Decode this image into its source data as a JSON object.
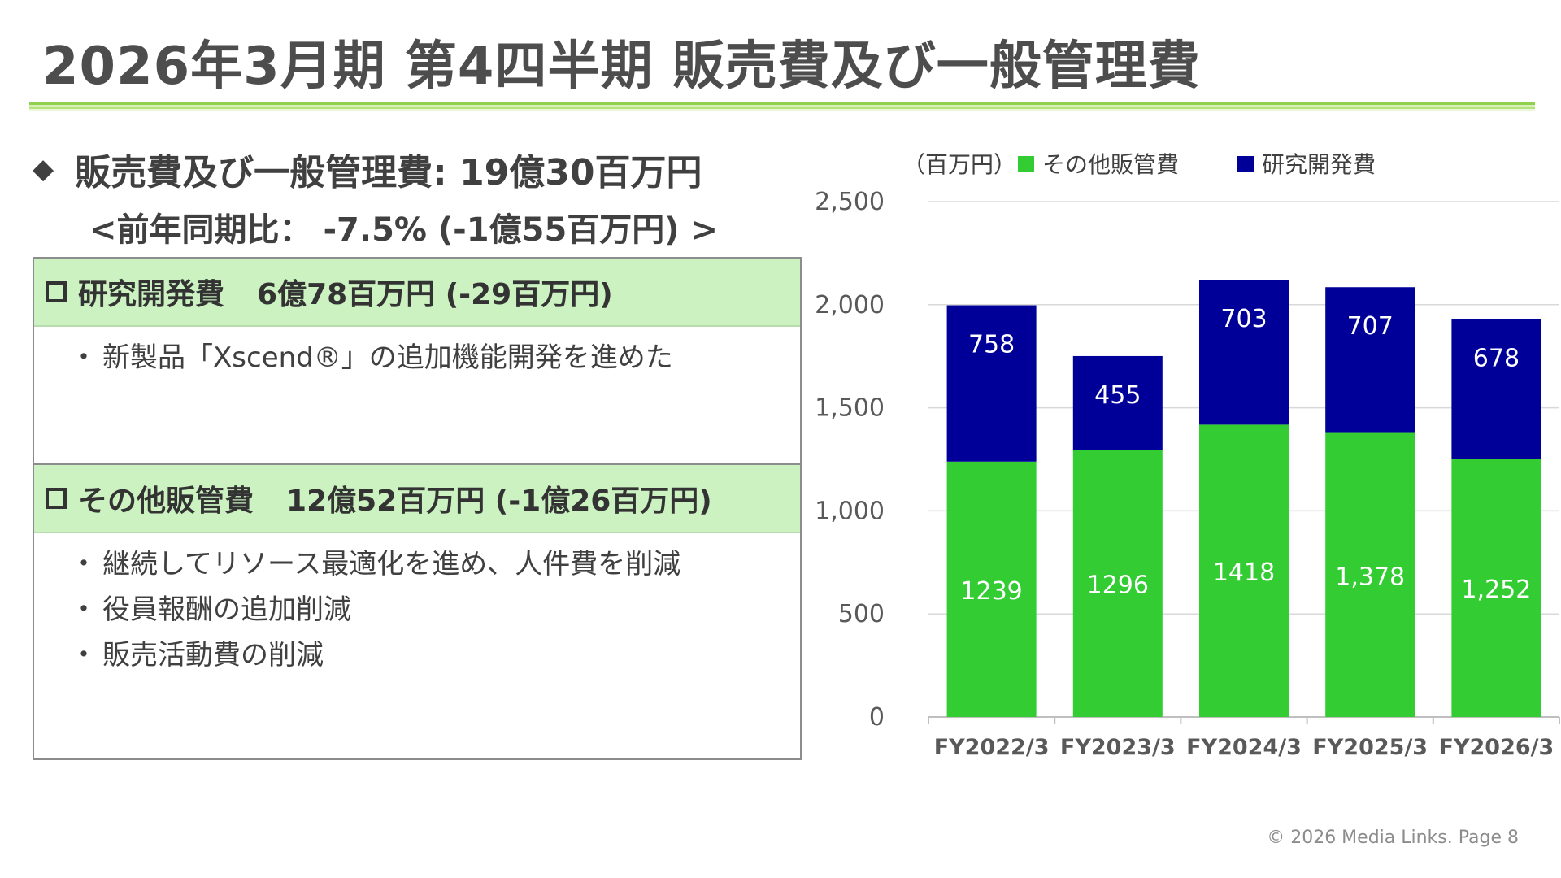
{
  "title": "2026年3月期 第4四半期 販売費及び一般管理費",
  "headline": {
    "icon": "diamond-icon",
    "line1": "販売費及び一般管理費: 19億30百万円",
    "line2": "<前年同期比： -7.5% (-1億55百万円) >"
  },
  "sections": [
    {
      "label": "研究開発費",
      "amount": "6億78百万円 (-29百万円)",
      "bullets": [
        "新製品「Xscend®」の追加機能開発を進めた"
      ]
    },
    {
      "label": "その他販管費",
      "amount": "12億52百万円 (-1億26百万円)",
      "bullets": [
        "継続してリソース最適化を進め、人件費を削減",
        "役員報酬の追加削減",
        "販売活動費の削減"
      ]
    }
  ],
  "bullet_mark": "・",
  "chart_data": {
    "type": "bar",
    "stacked": true,
    "unit_label": "（百万円）",
    "categories": [
      "FY2022/3",
      "FY2023/3",
      "FY2024/3",
      "FY2025/3",
      "FY2026/3"
    ],
    "series": [
      {
        "name": "その他販管費",
        "color": "#33cc33",
        "values": [
          1239,
          1296,
          1418,
          1378,
          1252
        ],
        "labels": [
          "1239",
          "1296",
          "1418",
          "1,378",
          "1,252"
        ]
      },
      {
        "name": "研究開発費",
        "color": "#000099",
        "values": [
          758,
          455,
          703,
          707,
          678
        ],
        "labels": [
          "758",
          "455",
          "703",
          "707",
          "678"
        ]
      }
    ],
    "ylim": [
      0,
      2500
    ],
    "yticks": [
      0,
      500,
      1000,
      1500,
      2000,
      2500
    ],
    "ytick_labels": [
      "0",
      "500",
      "1,000",
      "1,500",
      "2,000",
      "2,500"
    ],
    "grid": true,
    "legend_position": "top"
  },
  "footer": "© 2026 Media  Links. Page 8"
}
